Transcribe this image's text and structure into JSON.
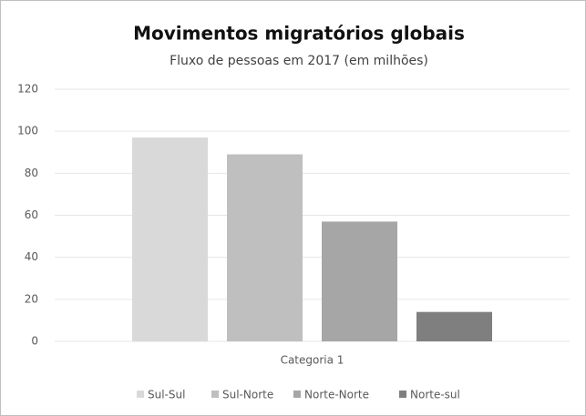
{
  "chart_data": {
    "type": "bar",
    "title": "Movimentos migratórios globais",
    "subtitle": "Fluxo de pessoas em 2017 (em milhões)",
    "categories": [
      "Categoria 1"
    ],
    "series": [
      {
        "name": "Sul-Sul",
        "color": "#d9d9d9",
        "values": [
          97
        ]
      },
      {
        "name": "Sul-Norte",
        "color": "#bfbfbf",
        "values": [
          89
        ]
      },
      {
        "name": "Norte-Norte",
        "color": "#a6a6a6",
        "values": [
          57
        ]
      },
      {
        "name": "Norte-sul",
        "color": "#7f7f7f",
        "values": [
          14
        ]
      }
    ],
    "ylim": [
      0,
      120
    ],
    "yticks": [
      0,
      20,
      40,
      60,
      80,
      100,
      120
    ],
    "grid": true,
    "legend": "bottom"
  }
}
